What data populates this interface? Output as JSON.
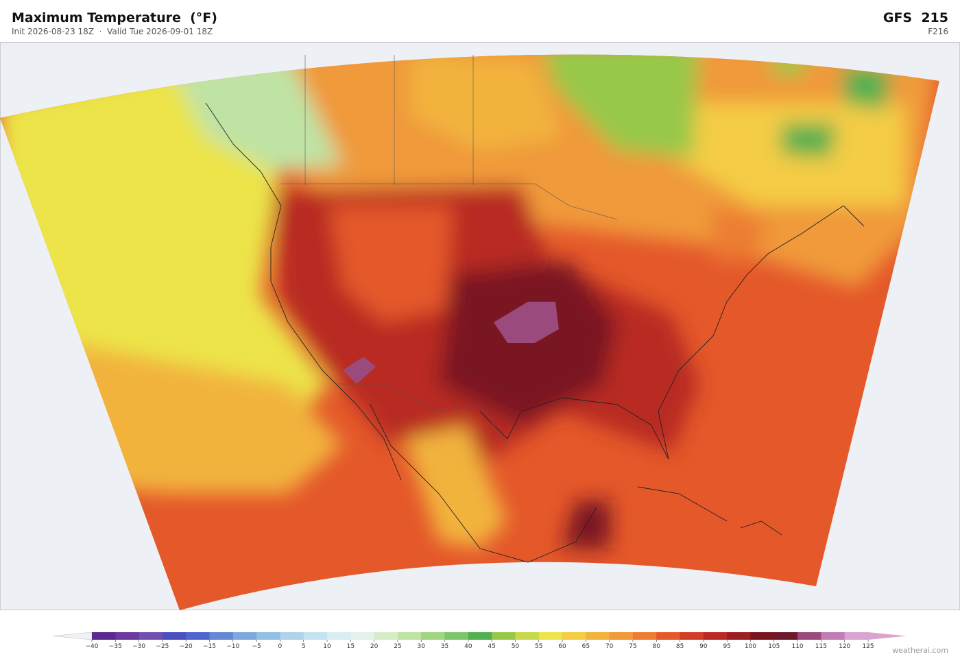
{
  "header": {
    "title": "Maximum Temperature  (°F)",
    "subtitle": "Init 2026-08-23 18Z  ·  Valid Tue 2026-09-01 18Z",
    "model": "GFS  215",
    "forecast_hour": "F216"
  },
  "colorbar": {
    "ticks": [
      {
        "value": -40,
        "label": "−40"
      },
      {
        "value": -35,
        "label": "−35"
      },
      {
        "value": -30,
        "label": "−30"
      },
      {
        "value": -25,
        "label": "−25"
      },
      {
        "value": -20,
        "label": "−20"
      },
      {
        "value": -15,
        "label": "−15"
      },
      {
        "value": -10,
        "label": "−10"
      },
      {
        "value": -5,
        "label": "−5"
      },
      0,
      5,
      10,
      15,
      20,
      25,
      30,
      35,
      40,
      45,
      50,
      55,
      60,
      65,
      70,
      75,
      80,
      85,
      90,
      95,
      100,
      105,
      110,
      115,
      120,
      125
    ],
    "colors": [
      "#5b2a8f",
      "#6a3a9e",
      "#7150b0",
      "#4b4fbf",
      "#4f66cc",
      "#6588d4",
      "#7ea7dd",
      "#94bfe4",
      "#aed3ea",
      "#c4e2ef",
      "#d8eef2",
      "#e3f2ea",
      "#d4ecc8",
      "#bfe3a4",
      "#a0d683",
      "#7dc56a",
      "#52b051",
      "#98c84a",
      "#c8d84b",
      "#ece44a",
      "#f4cc45",
      "#f2b33e",
      "#f09a3a",
      "#ec7d33",
      "#e4582a",
      "#d13f26",
      "#b82a23",
      "#9b1f22",
      "#7a1520",
      "#6e1a2e",
      "#9a4a7c",
      "#c07cb3",
      "#d9a5d0"
    ],
    "under_color": "#f2f2f6",
    "over_color": "#d9a5d0"
  },
  "footer": {
    "credit": "weatherai.com"
  }
}
